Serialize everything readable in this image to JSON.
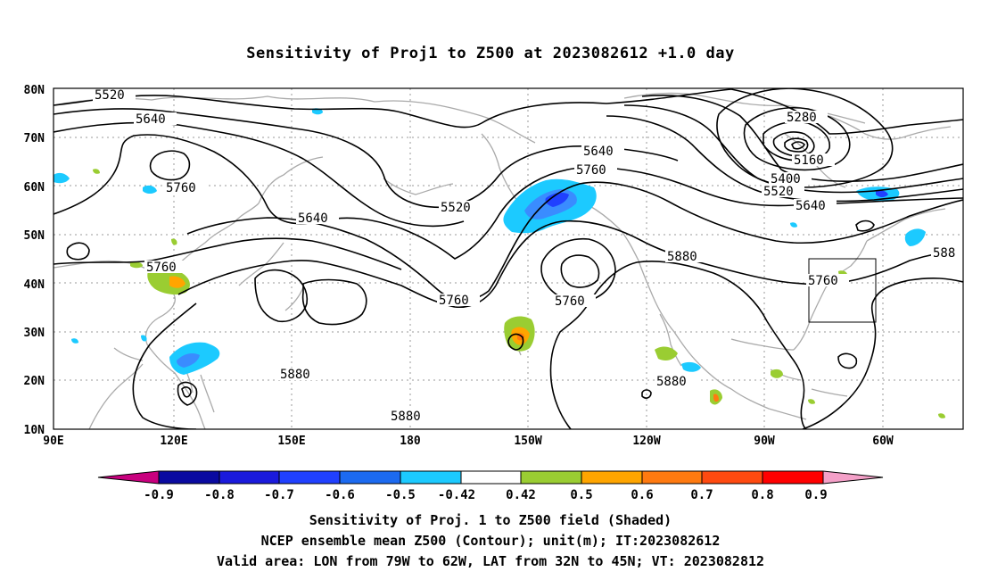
{
  "title": "Sensitivity of Proj1 to Z500 at 2023082612 +1.0 day",
  "lat_labels": [
    "80N",
    "70N",
    "60N",
    "50N",
    "40N",
    "30N",
    "20N",
    "10N"
  ],
  "lon_labels": [
    "90E",
    "120E",
    "150E",
    "180",
    "150W",
    "120W",
    "90W",
    "60W"
  ],
  "contour_labels": [
    "5520",
    "5640",
    "5760",
    "5640",
    "5760",
    "5520",
    "5640",
    "5760",
    "5760",
    "5760",
    "5880",
    "5880",
    "5880",
    "5880",
    "5280",
    "5160",
    "5400",
    "5520",
    "5640",
    "5760",
    "588"
  ],
  "colorbar": {
    "ticks": [
      "-0.9",
      "-0.8",
      "-0.7",
      "-0.6",
      "-0.5",
      "-0.42",
      "0.42",
      "0.5",
      "0.6",
      "0.7",
      "0.8",
      "0.9"
    ],
    "colors": [
      "#c8007e",
      "#0a0aa0",
      "#1a1adc",
      "#2040ff",
      "#1c6af0",
      "#3a8cff",
      "#1ccaff",
      "#ffffff",
      "#9acd32",
      "#ffa500",
      "#ff7a10",
      "#ff4a10",
      "#ff0000",
      "#f4a0c8"
    ]
  },
  "captions": [
    "Sensitivity of Proj. 1 to Z500 field (Shaded)",
    "NCEP ensemble mean Z500 (Contour); unit(m); IT:2023082612",
    "Valid area: LON from 79W to 62W, LAT from 32N to 45N; VT: 2023082812"
  ]
}
